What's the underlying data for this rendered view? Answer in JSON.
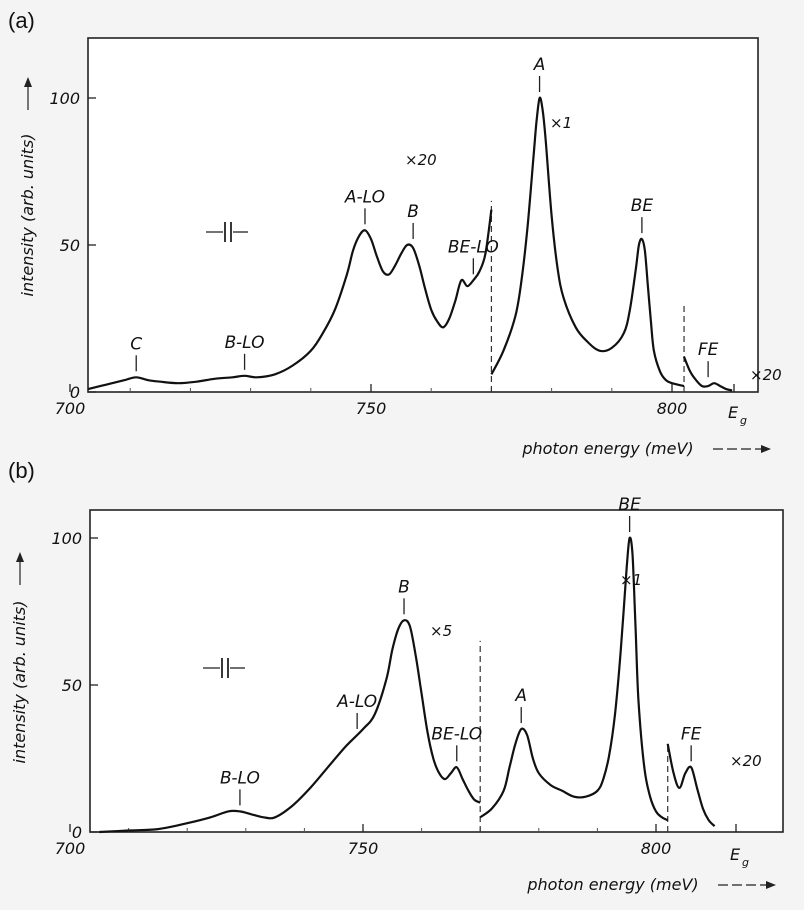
{
  "chart_data": [
    {
      "panel": "(a)",
      "type": "line",
      "ylabel": "intensity (arb. units)",
      "xlabel": "photon energy (meV)",
      "xlim": [
        700,
        810
      ],
      "ylim": [
        0,
        120
      ],
      "x_ticks": [
        "700",
        "750",
        "800"
      ],
      "y_ticks": [
        "0",
        "50",
        "100"
      ],
      "extra_x_label": "E",
      "extra_x_sub": "g",
      "break_at": 770,
      "segments": [
        {
          "name": "",
          "multiplier": "×20",
          "x": [
            703,
            705,
            707,
            709,
            711,
            713,
            715,
            718,
            721,
            724,
            727,
            729,
            731,
            734,
            737,
            740,
            742,
            744,
            746,
            747,
            748,
            749,
            750,
            751,
            752,
            753,
            754,
            755,
            756,
            757,
            758,
            759,
            760,
            761,
            762,
            763,
            764,
            765,
            766,
            767,
            768,
            769,
            770
          ],
          "y": [
            1,
            2,
            3,
            4,
            5,
            4,
            3.5,
            3,
            3.5,
            4.5,
            5,
            5.5,
            5,
            6,
            9,
            14,
            20,
            28,
            40,
            48,
            53,
            55,
            52,
            46,
            41,
            40,
            43,
            47,
            50,
            49,
            43,
            35,
            28,
            24,
            22,
            25,
            31,
            38,
            36,
            38,
            41,
            47,
            62
          ]
        },
        {
          "name": "",
          "multiplier": "×1",
          "x": [
            770,
            772,
            774,
            775,
            776,
            777,
            777.5,
            778,
            778.5,
            779,
            780,
            781,
            782,
            784,
            786,
            788,
            790,
            792,
            793,
            794,
            794.5,
            795,
            795.5,
            796,
            796.5,
            797,
            798,
            799,
            800,
            802
          ],
          "y": [
            6,
            14,
            26,
            38,
            56,
            80,
            92,
            100,
            96,
            86,
            60,
            42,
            32,
            22,
            17,
            14,
            15,
            20,
            28,
            42,
            50,
            52,
            48,
            36,
            24,
            14,
            7,
            4,
            3,
            2
          ]
        },
        {
          "name": "",
          "multiplier": "×20",
          "x": [
            802,
            803,
            804,
            805,
            806,
            807,
            808,
            809,
            810
          ],
          "y": [
            12,
            7,
            4,
            2,
            2,
            3,
            2,
            1,
            0.5
          ]
        }
      ],
      "annotations": [
        {
          "label": "C",
          "x": 711,
          "y": 5
        },
        {
          "label": "B-LO",
          "x": 729,
          "y": 5.5
        },
        {
          "label": "A-LO",
          "x": 749,
          "y": 55
        },
        {
          "label": "B",
          "x": 757,
          "y": 50
        },
        {
          "label": "BE-LO",
          "x": 767,
          "y": 38
        },
        {
          "label": "A",
          "x": 778,
          "y": 100
        },
        {
          "label": "BE",
          "x": 795,
          "y": 52
        },
        {
          "label": "FE",
          "x": 806,
          "y": 3
        }
      ]
    },
    {
      "panel": "(b)",
      "type": "line",
      "ylabel": "intensity (arb. units)",
      "xlabel": "photon energy (meV)",
      "xlim": [
        700,
        810
      ],
      "ylim": [
        0,
        110
      ],
      "x_ticks": [
        "700",
        "750",
        "800"
      ],
      "y_ticks": [
        "0",
        "50",
        "100"
      ],
      "extra_x_label": "E",
      "extra_x_sub": "g",
      "break_at": 770,
      "segments": [
        {
          "name": "",
          "multiplier": "×5",
          "x": [
            705,
            710,
            715,
            720,
            724,
            727,
            729,
            731,
            733,
            735,
            738,
            741,
            744,
            747,
            750,
            752,
            754,
            755,
            756,
            757,
            758,
            759,
            760,
            761,
            762,
            763,
            764,
            765,
            766,
            767,
            768,
            769,
            770
          ],
          "y": [
            0,
            0.5,
            1,
            3,
            5,
            7,
            7,
            6,
            5,
            5,
            9,
            15,
            22,
            29,
            35,
            40,
            52,
            62,
            69,
            72,
            70,
            60,
            47,
            34,
            25,
            20,
            18,
            20,
            22,
            18,
            14,
            11,
            10
          ]
        },
        {
          "name": "",
          "multiplier": "×1",
          "x": [
            770,
            772,
            774,
            775,
            776,
            777,
            778,
            779,
            780,
            782,
            784,
            786,
            788,
            790,
            791,
            792,
            793,
            794,
            795,
            795.5,
            796,
            796.5,
            797,
            798,
            799,
            800,
            801,
            802
          ],
          "y": [
            5,
            8,
            14,
            22,
            30,
            35,
            33,
            25,
            20,
            16,
            14,
            12,
            12,
            14,
            18,
            26,
            40,
            62,
            90,
            100,
            94,
            70,
            45,
            22,
            12,
            7,
            5,
            4
          ]
        },
        {
          "name": "",
          "multiplier": "×20",
          "x": [
            802,
            803,
            804,
            805,
            806,
            807,
            808,
            809,
            810
          ],
          "y": [
            30,
            20,
            15,
            20,
            22,
            15,
            8,
            4,
            2
          ]
        }
      ],
      "annotations": [
        {
          "label": "B-LO",
          "x": 729,
          "y": 7
        },
        {
          "label": "A-LO",
          "x": 749,
          "y": 33
        },
        {
          "label": "B",
          "x": 757,
          "y": 72
        },
        {
          "label": "BE-LO",
          "x": 766,
          "y": 22
        },
        {
          "label": "A",
          "x": 777,
          "y": 35
        },
        {
          "label": "BE",
          "x": 795.5,
          "y": 100
        },
        {
          "label": "FE",
          "x": 806,
          "y": 22
        }
      ]
    }
  ]
}
